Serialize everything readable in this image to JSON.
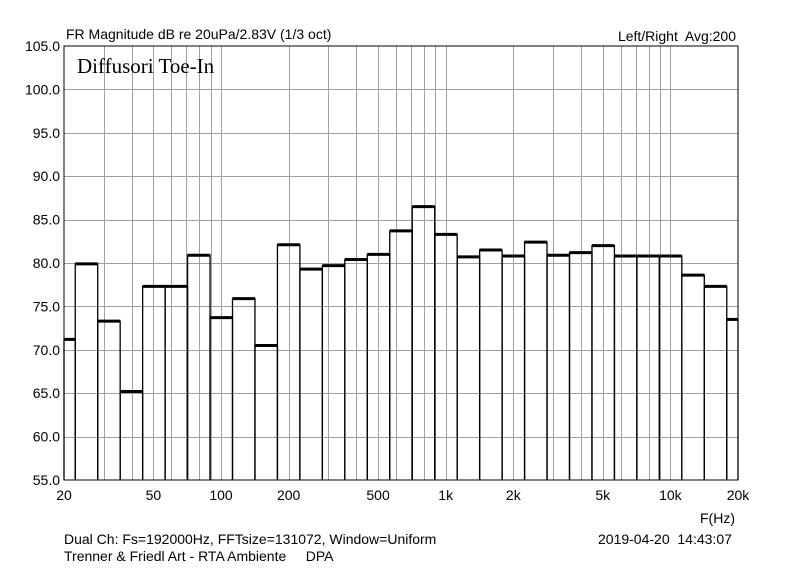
{
  "header": {
    "title": "FR Magnitude dB re 20uPa/2.83V (1/3 oct)",
    "right": "Left/Right  Avg:200"
  },
  "footer": {
    "line1": "Dual Ch: Fs=192000Hz, FFTsize=131072, Window=Uniform",
    "line2": "Trenner & Friedl Art - RTA Ambiente     DPA",
    "timestamp": "2019-04-20  14:43:07"
  },
  "colors": {
    "annotation": "#cc0000",
    "grid": "#a0a0a0",
    "bars": "#000000"
  },
  "chart_data": {
    "type": "bar",
    "annotation": "Diffusori Toe-In",
    "xlabel": "F(Hz)",
    "ylabel": "",
    "xscale": "log",
    "xlim": [
      20,
      20000
    ],
    "ylim": [
      55,
      105
    ],
    "grid": true,
    "y_ticks": [
      "105.0",
      "100.0",
      "95.0",
      "90.0",
      "85.0",
      "80.0",
      "75.0",
      "70.0",
      "65.0",
      "60.0",
      "55.0"
    ],
    "x_ticks": [
      {
        "label": "20",
        "f": 20
      },
      {
        "label": "50",
        "f": 50
      },
      {
        "label": "100",
        "f": 100
      },
      {
        "label": "200",
        "f": 200
      },
      {
        "label": "500",
        "f": 500
      },
      {
        "label": "1k",
        "f": 1000
      },
      {
        "label": "2k",
        "f": 2000
      },
      {
        "label": "5k",
        "f": 5000
      },
      {
        "label": "10k",
        "f": 10000
      },
      {
        "label": "20k",
        "f": 20000
      }
    ],
    "categories": [
      "20",
      "25",
      "31.5",
      "40",
      "50",
      "63",
      "80",
      "100",
      "125",
      "160",
      "200",
      "250",
      "315",
      "400",
      "500",
      "630",
      "800",
      "1k",
      "1.25k",
      "1.6k",
      "2k",
      "2.5k",
      "3.15k",
      "4k",
      "5k",
      "6.3k",
      "8k",
      "10k",
      "12.5k",
      "16k",
      "20k"
    ],
    "values": [
      71.2,
      79.9,
      73.3,
      65.2,
      77.3,
      77.3,
      80.9,
      73.7,
      75.9,
      70.5,
      82.1,
      79.3,
      79.7,
      80.4,
      81.0,
      83.7,
      86.5,
      83.3,
      80.7,
      81.5,
      80.8,
      82.4,
      80.9,
      81.2,
      82.0,
      80.8,
      80.8,
      80.8,
      78.6,
      77.3,
      73.5
    ]
  }
}
